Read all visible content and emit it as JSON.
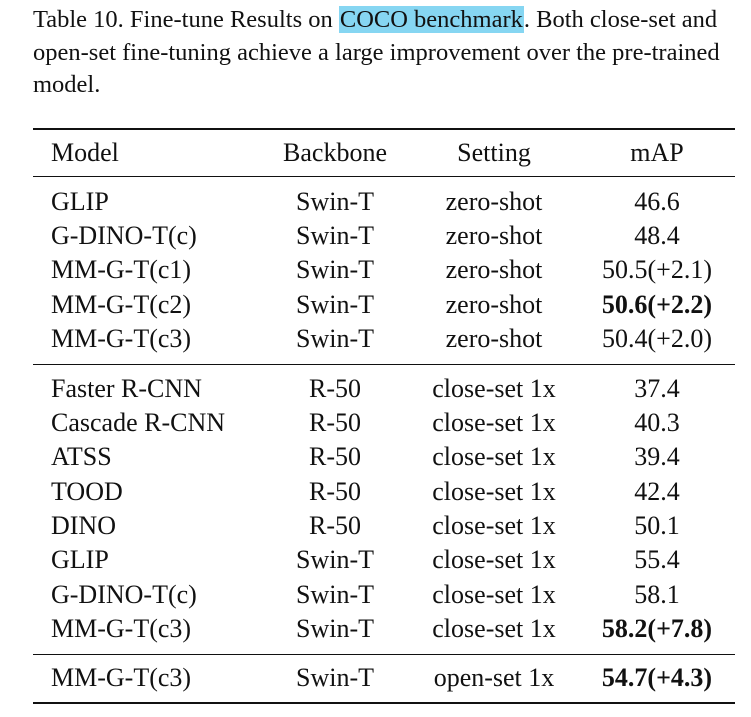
{
  "caption": {
    "prefix": "Table 10.  Fine-tune Results on ",
    "highlight": "COCO benchmark",
    "suffix": ".  Both close-set and open-set fine-tuning achieve a large improvement over the pre-trained model."
  },
  "table": {
    "headers": {
      "model": "Model",
      "backbone": "Backbone",
      "setting": "Setting",
      "map": "mAP"
    },
    "rows": [
      {
        "model": "GLIP",
        "backbone": "Swin-T",
        "setting": "zero-shot",
        "map": "46.6",
        "bold": false
      },
      {
        "model": "G-DINO-T(c)",
        "backbone": "Swin-T",
        "setting": "zero-shot",
        "map": "48.4",
        "bold": false
      },
      {
        "model": "MM-G-T(c1)",
        "backbone": "Swin-T",
        "setting": "zero-shot",
        "map": "50.5(+2.1)",
        "bold": false
      },
      {
        "model": "MM-G-T(c2)",
        "backbone": "Swin-T",
        "setting": "zero-shot",
        "map": "50.6(+2.2)",
        "bold": true
      },
      {
        "model": "MM-G-T(c3)",
        "backbone": "Swin-T",
        "setting": "zero-shot",
        "map": "50.4(+2.0)",
        "bold": false
      },
      {
        "model": "Faster R-CNN",
        "backbone": "R-50",
        "setting": "close-set 1x",
        "map": "37.4",
        "bold": false
      },
      {
        "model": "Cascade R-CNN",
        "backbone": "R-50",
        "setting": "close-set 1x",
        "map": "40.3",
        "bold": false
      },
      {
        "model": "ATSS",
        "backbone": "R-50",
        "setting": "close-set 1x",
        "map": "39.4",
        "bold": false
      },
      {
        "model": "TOOD",
        "backbone": "R-50",
        "setting": "close-set 1x",
        "map": "42.4",
        "bold": false
      },
      {
        "model": "DINO",
        "backbone": "R-50",
        "setting": "close-set 1x",
        "map": "50.1",
        "bold": false
      },
      {
        "model": "GLIP",
        "backbone": "Swin-T",
        "setting": "close-set 1x",
        "map": "55.4",
        "bold": false
      },
      {
        "model": "G-DINO-T(c)",
        "backbone": "Swin-T",
        "setting": "close-set 1x",
        "map": "58.1",
        "bold": false
      },
      {
        "model": "MM-G-T(c3)",
        "backbone": "Swin-T",
        "setting": "close-set 1x",
        "map": "58.2(+7.8)",
        "bold": true
      },
      {
        "model": "MM-G-T(c3)",
        "backbone": "Swin-T",
        "setting": "open-set 1x",
        "map": "54.7(+4.3)",
        "bold": true
      }
    ]
  }
}
